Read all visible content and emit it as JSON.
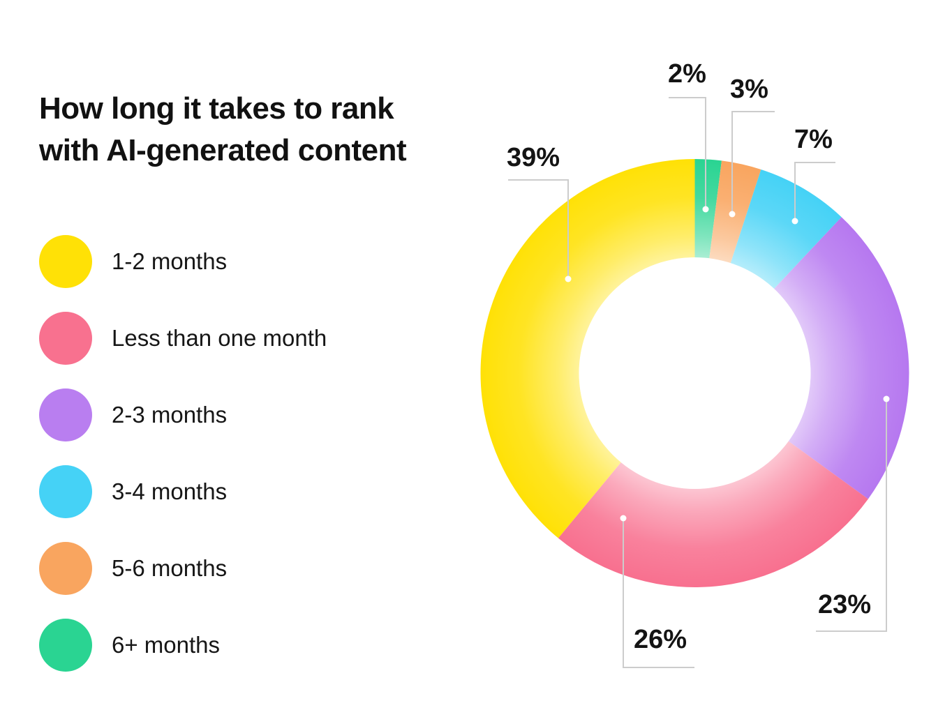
{
  "title": {
    "line1": "How long it takes to rank",
    "line2": "with AI-generated content"
  },
  "legend": [
    {
      "label": "1-2 months",
      "color": "#FFE106"
    },
    {
      "label": "Less than one month",
      "color": "#F8718F"
    },
    {
      "label": "2-3 months",
      "color": "#B97EF0"
    },
    {
      "label": "3-4 months",
      "color": "#45D2F6"
    },
    {
      "label": "5-6 months",
      "color": "#F9A55F"
    },
    {
      "label": "6+ months",
      "color": "#2AD492"
    }
  ],
  "chart_data": {
    "type": "pie",
    "subtype": "donut",
    "title": "How long it takes to rank with AI-generated content",
    "value_unit": "%",
    "start_angle_deg": 0,
    "direction": "clockwise",
    "inner_radius_ratio": 0.54,
    "segments": [
      {
        "label": "6+ months",
        "value": 2,
        "display": "2%",
        "color": "#2AD492"
      },
      {
        "label": "5-6 months",
        "value": 3,
        "display": "3%",
        "color": "#F9A55F"
      },
      {
        "label": "3-4 months",
        "value": 7,
        "display": "7%",
        "color": "#45D2F6"
      },
      {
        "label": "2-3 months",
        "value": 23,
        "display": "23%",
        "color": "#B678F0"
      },
      {
        "label": "Less than one month",
        "value": 26,
        "display": "26%",
        "color": "#F8708F"
      },
      {
        "label": "1-2 months",
        "value": 39,
        "display": "39%",
        "color": "#FFE106"
      }
    ]
  }
}
